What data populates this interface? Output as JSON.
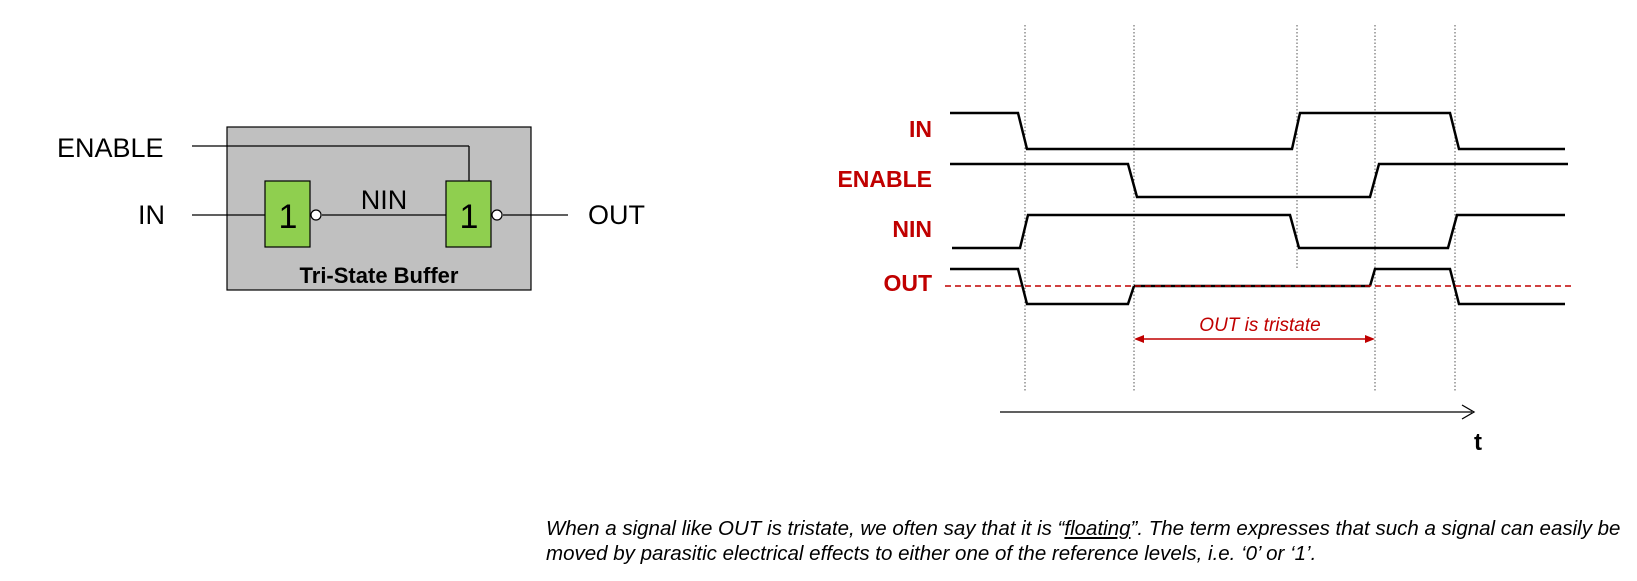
{
  "colors": {
    "buffer_bg": "#c0c0c0",
    "gate_fill": "#8fcf4f",
    "accent": "#c00000"
  },
  "circuit": {
    "enable_label": "ENABLE",
    "in_label": "IN",
    "nin_label": "NIN",
    "out_label": "OUT",
    "gate1_label": "1",
    "gate2_label": "1",
    "buffer_title": "Tri-State Buffer"
  },
  "timing": {
    "signals": [
      "IN",
      "ENABLE",
      "NIN",
      "OUT"
    ],
    "tristate_label": "OUT is tristate",
    "time_label": "t"
  },
  "caption": {
    "part1": "When a signal like OUT is tristate, we often say that it is “",
    "floating": "floating",
    "part2": "”. The term expresses that such a signal can easily be moved by parasitic electrical effects to either one of the reference levels, i.e. ‘0’ or ‘1’."
  }
}
